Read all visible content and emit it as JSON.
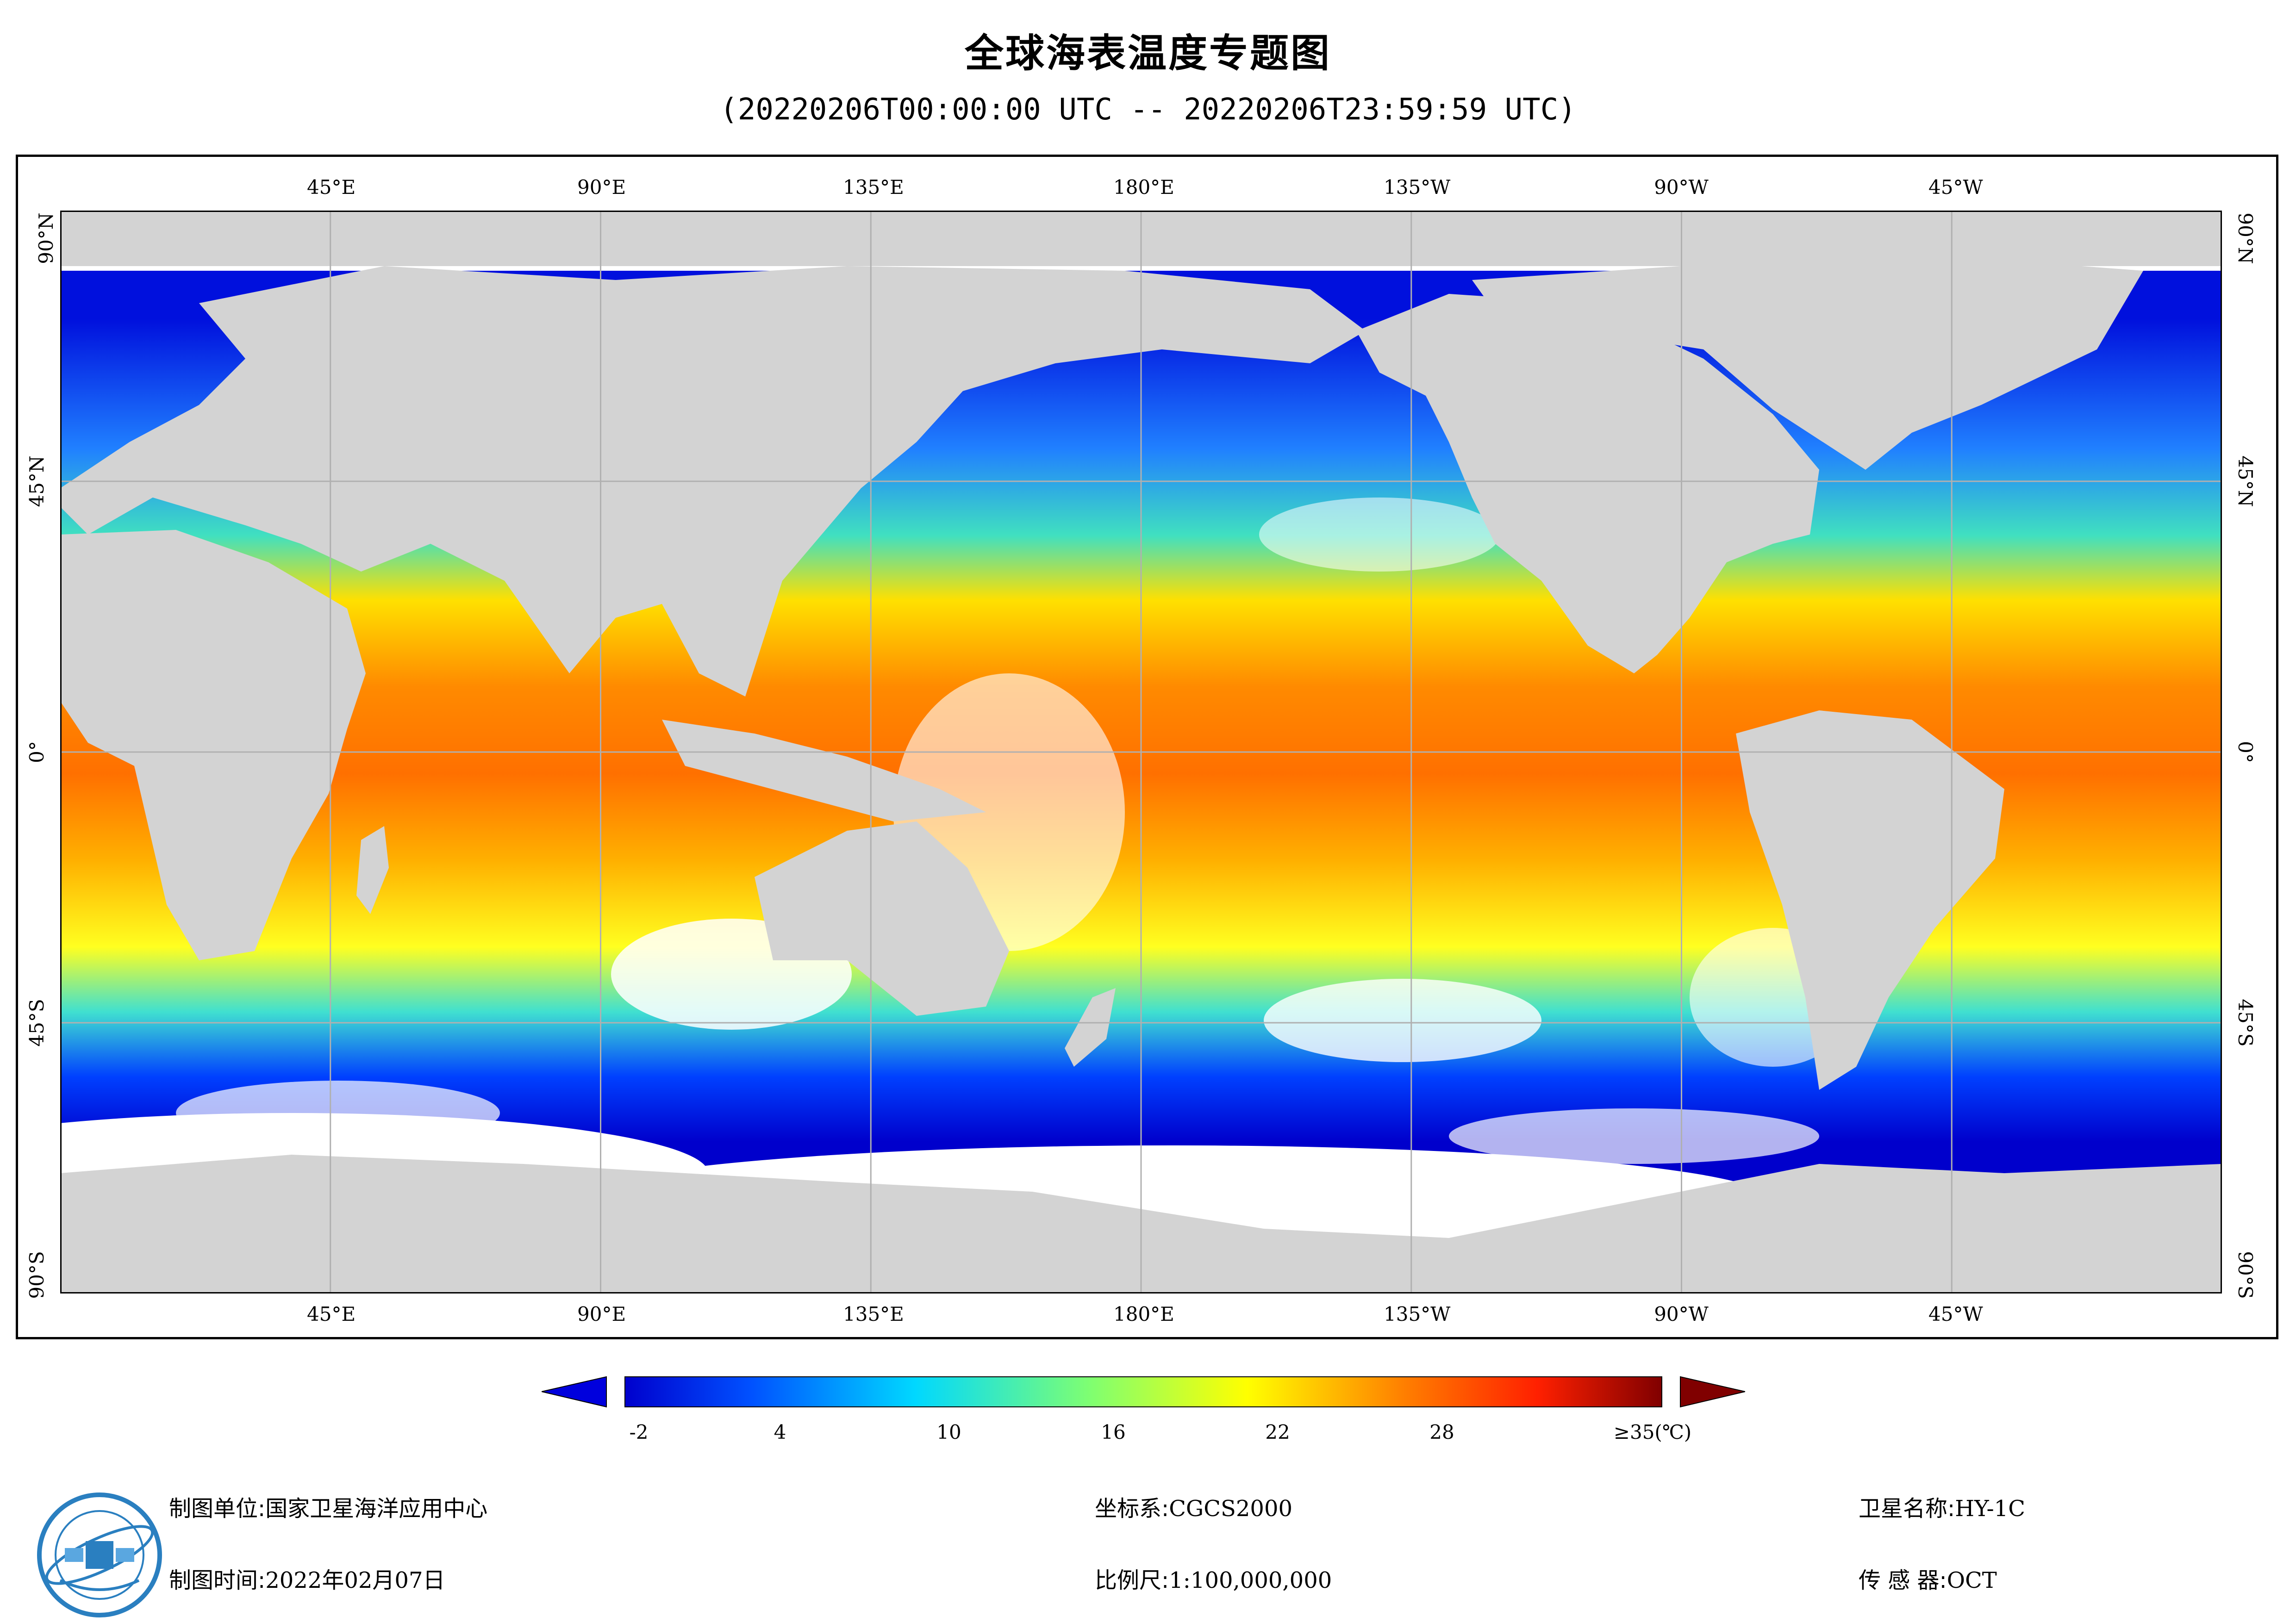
{
  "title": "全球海表温度专题图",
  "subtitle": "(20220206T00:00:00 UTC -- 20220206T23:59:59 UTC)",
  "map": {
    "top_labels": [
      "45°E",
      "90°E",
      "135°E",
      "180°E",
      "135°W",
      "90°W",
      "45°W"
    ],
    "bottom_labels": [
      "45°E",
      "90°E",
      "135°E",
      "180°E",
      "135°W",
      "90°W",
      "45°W"
    ],
    "left_labels": [
      "90°N",
      "45°N",
      "0°",
      "45°S",
      "90°S"
    ],
    "right_labels": [
      "90°N",
      "45°N",
      "0°",
      "45°S",
      "90°S"
    ],
    "land_color": "#d3d3d3",
    "no_data_color": "#ffffff",
    "grid_color": "#b0b0b0"
  },
  "legend": {
    "ticks": [
      "-2",
      "4",
      "10",
      "16",
      "22",
      "28",
      "≥35(℃)"
    ],
    "colors": [
      "#0000cd",
      "#0050ff",
      "#00c8ff",
      "#80ff80",
      "#ffff00",
      "#ff8000",
      "#ff2000",
      "#800000"
    ]
  },
  "footer": {
    "unit_label": "制图单位:",
    "unit_value": "国家卫星海洋应用中心",
    "time_label": "制图时间:",
    "time_value": "2022年02月07日",
    "crs_label": "坐标系:",
    "crs_value": "CGCS2000",
    "scale_label": "比例尺:",
    "scale_value": "1:100,000,000",
    "satellite_label": "卫星名称:",
    "satellite_value": "HY-1C",
    "sensor_label": "传 感 器:",
    "sensor_value": "OCT"
  },
  "logo": {
    "icon": "nsoas-logo-icon"
  }
}
